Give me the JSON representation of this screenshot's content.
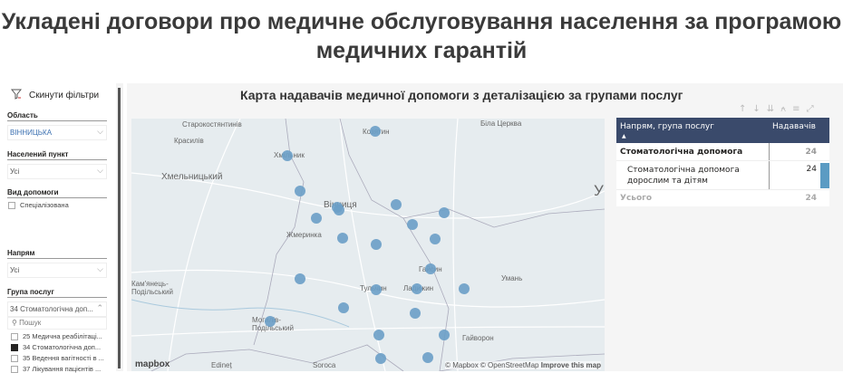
{
  "title": "Укладені договори про медичне обслуговування населення за програмою медичних гарантій",
  "sidebar": {
    "reset_label": "Скинути фільтри",
    "oblast": {
      "label": "Область",
      "value": "ВІННИЦЬКА"
    },
    "settlement": {
      "label": "Населений пункт",
      "value": "Усі"
    },
    "care_type": {
      "label": "Вид допомоги",
      "option": "Спеціалізована",
      "checked": false
    },
    "direction": {
      "label": "Напрям",
      "value": "Усі"
    },
    "service_group": {
      "label": "Група послуг",
      "value": "34 Стоматологічна доп...",
      "search_placeholder": "Пошук",
      "options": [
        {
          "label": "25 Медична реабілітаці...",
          "checked": false
        },
        {
          "label": "34 Стоматологічна доп...",
          "checked": true
        },
        {
          "label": "35 Ведення вагітності в ...",
          "checked": false
        },
        {
          "label": "37 Лікування пацієнтів ...",
          "checked": false
        }
      ]
    }
  },
  "panel": {
    "title": "Карта надавачів медичної допомоги з деталізацією за групами послуг"
  },
  "map": {
    "marker_color": "#6a9ec6",
    "cities": [
      "Старокостянтинів",
      "Красилів",
      "Хмільник",
      "Хмельницький",
      "Вінниця",
      "Жмеринка",
      "Кам'янець-Подільський",
      "Могилів-Подільський",
      "Edineț",
      "Soroca",
      "Козятин",
      "Біла Церква",
      "Гайсин",
      "Тульчин",
      "Ладижин",
      "Умань",
      "Гайворон",
      "У"
    ],
    "attribution": "© Mapbox © OpenStreetMap",
    "improve": "Improve this map",
    "logo": "mapbox"
  },
  "table": {
    "headers": [
      "Напрям, група послуг",
      "Надавачів"
    ],
    "group": {
      "label": "Стоматологічна допомога",
      "value": "24"
    },
    "child": {
      "label": "Стоматологічна допомога дорослим та дітям",
      "value": "24",
      "bar_fraction": 1.0
    },
    "total": {
      "label": "Усього",
      "value": "24"
    },
    "header_color": "#3a4a6b",
    "bar_color": "#5b9bc3"
  }
}
